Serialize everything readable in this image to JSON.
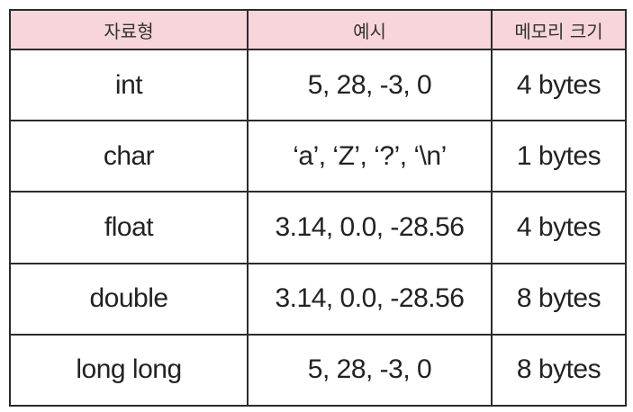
{
  "table": {
    "headers": [
      "자료형",
      "예시",
      "메모리 크기"
    ],
    "rows": [
      [
        "int",
        "5, 28, -3, 0",
        "4 bytes"
      ],
      [
        "char",
        "‘a’, ‘Z’, ‘?’, ‘\\n’",
        "1 bytes"
      ],
      [
        "float",
        "3.14, 0.0, -28.56",
        "4 bytes"
      ],
      [
        "double",
        "3.14, 0.0, -28.56",
        "8 bytes"
      ],
      [
        "long long",
        "5, 28, -3, 0",
        "8 bytes"
      ]
    ]
  },
  "colors": {
    "header_bg": "#f7d5db",
    "border": "#2b2b2b",
    "text": "#222222"
  }
}
